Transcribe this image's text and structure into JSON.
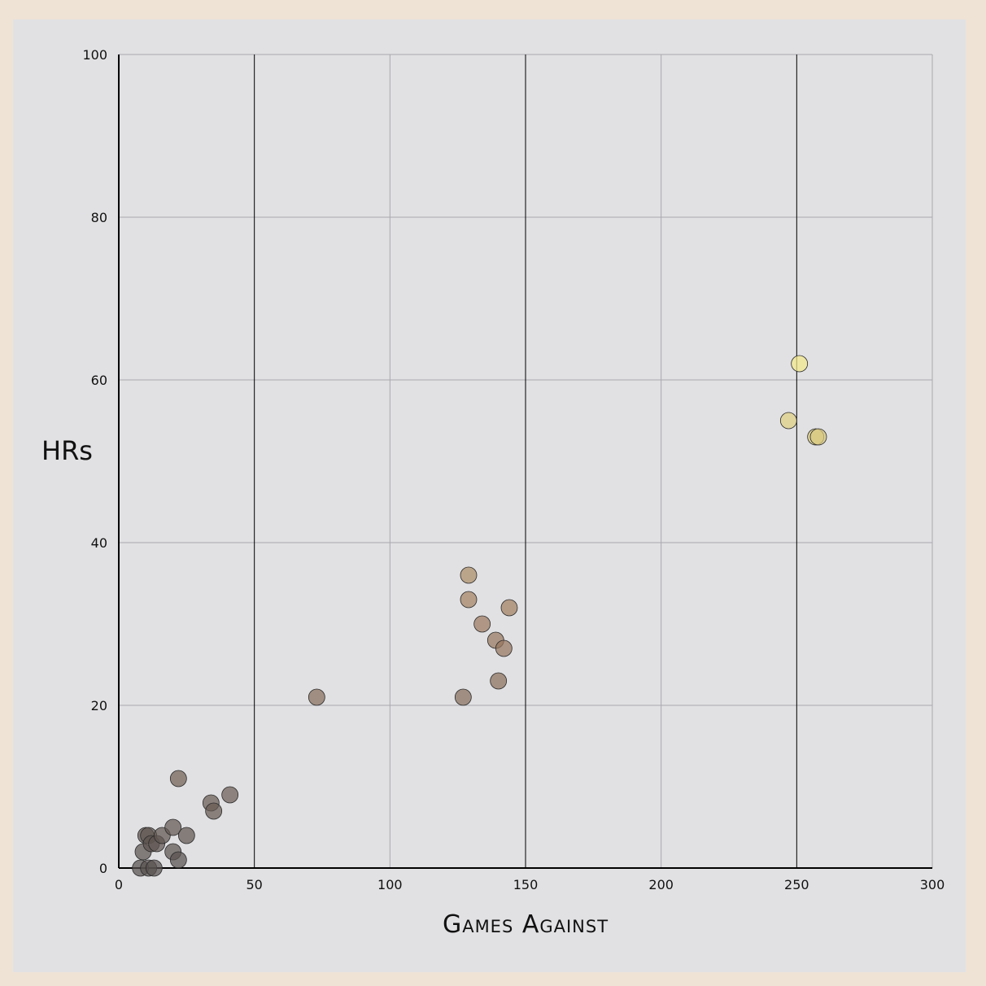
{
  "chart_data": {
    "type": "scatter",
    "title": "",
    "xlabel": "Games Against",
    "ylabel": "HRs",
    "xlim": [
      0,
      300
    ],
    "ylim": [
      0,
      100
    ],
    "x_ticks": [
      0,
      50,
      100,
      150,
      200,
      250,
      300
    ],
    "y_ticks": [
      0,
      20,
      40,
      60,
      80,
      100
    ],
    "grid": true,
    "colors": {
      "background": "#efe3d6",
      "plot_background": "#e1e1e4",
      "grid_major": "#000000",
      "grid_minor": "#a9a9ae",
      "point_low": "#57514f",
      "point_mid": "#9e7b60",
      "point_high": "#f2e98a"
    },
    "points": [
      {
        "x": 8,
        "y": 0
      },
      {
        "x": 11,
        "y": 0
      },
      {
        "x": 13,
        "y": 0
      },
      {
        "x": 9,
        "y": 2
      },
      {
        "x": 10,
        "y": 4
      },
      {
        "x": 11,
        "y": 4
      },
      {
        "x": 12,
        "y": 3
      },
      {
        "x": 14,
        "y": 3
      },
      {
        "x": 16,
        "y": 4
      },
      {
        "x": 20,
        "y": 5
      },
      {
        "x": 20,
        "y": 2
      },
      {
        "x": 22,
        "y": 1
      },
      {
        "x": 25,
        "y": 4
      },
      {
        "x": 22,
        "y": 11
      },
      {
        "x": 34,
        "y": 8
      },
      {
        "x": 35,
        "y": 7
      },
      {
        "x": 41,
        "y": 9
      },
      {
        "x": 73,
        "y": 21
      },
      {
        "x": 127,
        "y": 21
      },
      {
        "x": 129,
        "y": 36
      },
      {
        "x": 129,
        "y": 33
      },
      {
        "x": 134,
        "y": 30
      },
      {
        "x": 139,
        "y": 28
      },
      {
        "x": 140,
        "y": 23
      },
      {
        "x": 142,
        "y": 27
      },
      {
        "x": 144,
        "y": 32
      },
      {
        "x": 247,
        "y": 55
      },
      {
        "x": 251,
        "y": 62
      },
      {
        "x": 257,
        "y": 53
      },
      {
        "x": 258,
        "y": 53
      }
    ]
  }
}
